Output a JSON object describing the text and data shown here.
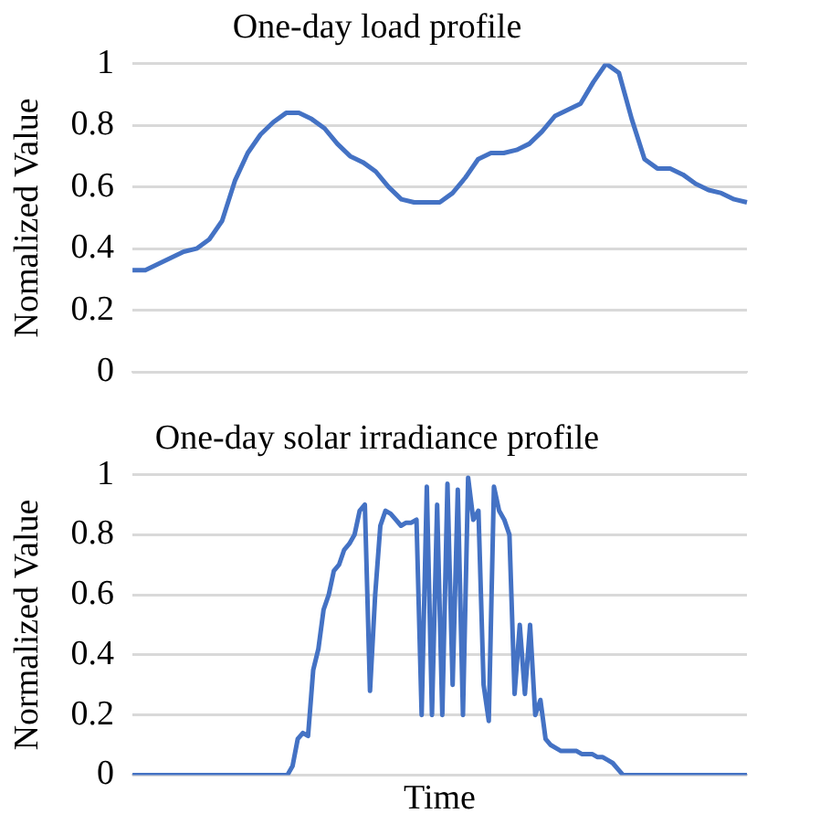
{
  "chart_data": [
    {
      "type": "line",
      "title": "One-day load profile",
      "ylabel": "Nomalized Value",
      "categories": [
        null,
        null,
        null,
        null,
        null,
        null,
        null,
        null,
        null,
        null,
        null,
        null,
        null,
        null,
        null,
        null,
        null,
        null,
        null,
        null,
        null,
        null,
        null,
        null,
        null,
        null,
        null,
        null,
        null,
        null,
        null,
        null,
        null,
        null,
        null,
        null,
        null,
        null,
        null,
        null,
        null,
        null,
        null,
        null,
        null,
        null,
        null,
        null,
        null
      ],
      "series": [
        {
          "color": "#4472c4",
          "values": [
            0.33,
            0.33,
            0.35,
            0.37,
            0.39,
            0.4,
            0.43,
            0.49,
            0.62,
            0.71,
            0.77,
            0.81,
            0.84,
            0.84,
            0.82,
            0.79,
            0.74,
            0.7,
            0.68,
            0.65,
            0.6,
            0.56,
            0.55,
            0.55,
            0.55,
            0.58,
            0.63,
            0.69,
            0.71,
            0.71,
            0.72,
            0.74,
            0.78,
            0.83,
            0.85,
            0.87,
            0.94,
            1,
            0.97,
            0.82,
            0.69,
            0.66,
            0.66,
            0.64,
            0.61,
            0.59,
            0.58,
            0.56,
            0.55
          ]
        }
      ],
      "ylim": [
        0,
        1
      ],
      "yticks": [
        0,
        0.2,
        0.4,
        0.6,
        0.8,
        1
      ],
      "grid": "y",
      "tick_labels": "y",
      "marker": "none",
      "line_style": "solid"
    },
    {
      "type": "line",
      "title": "One-day solar irradiance profile",
      "xlabel": "Time",
      "ylabel": "Normalized Value",
      "categories": [
        null,
        null,
        null,
        null,
        null,
        null,
        null,
        null,
        null,
        null,
        null,
        null,
        null,
        null,
        null,
        null,
        null,
        null,
        null,
        null,
        null,
        null,
        null,
        null,
        null,
        null,
        null,
        null,
        null,
        null,
        null,
        null,
        null,
        null,
        null,
        null,
        null,
        null,
        null,
        null,
        null,
        null,
        null,
        null,
        null,
        null,
        null,
        null,
        null,
        null,
        null,
        null,
        null,
        null,
        null,
        null,
        null,
        null,
        null,
        null,
        null,
        null,
        null,
        null,
        null,
        null,
        null,
        null,
        null,
        null,
        null,
        null,
        null,
        null,
        null,
        null,
        null,
        null,
        null,
        null,
        null,
        null,
        null,
        null,
        null,
        null,
        null,
        null,
        null,
        null,
        null,
        null,
        null,
        null,
        null,
        null,
        null,
        null,
        null,
        null,
        null,
        null,
        null,
        null,
        null,
        null,
        null,
        null,
        null,
        null,
        null,
        null,
        null,
        null,
        null,
        null,
        null,
        null,
        null,
        null
      ],
      "series": [
        {
          "color": "#4472c4",
          "values": [
            0,
            0,
            0,
            0,
            0,
            0,
            0,
            0,
            0,
            0,
            0,
            0,
            0,
            0,
            0,
            0,
            0,
            0,
            0,
            0,
            0,
            0,
            0,
            0,
            0,
            0,
            0,
            0,
            0,
            0,
            0,
            0.03,
            0.12,
            0.14,
            0.13,
            0.35,
            0.42,
            0.55,
            0.6,
            0.68,
            0.7,
            0.75,
            0.77,
            0.8,
            0.88,
            0.9,
            0.28,
            0.6,
            0.83,
            0.88,
            0.87,
            0.85,
            0.83,
            0.84,
            0.84,
            0.85,
            0.2,
            0.96,
            0.2,
            0.9,
            0.2,
            0.97,
            0.3,
            0.95,
            0.2,
            0.99,
            0.85,
            0.88,
            0.3,
            0.18,
            0.96,
            0.88,
            0.85,
            0.8,
            0.27,
            0.5,
            0.27,
            0.5,
            0.2,
            0.25,
            0.12,
            0.1,
            0.09,
            0.08,
            0.08,
            0.08,
            0.08,
            0.07,
            0.07,
            0.07,
            0.06,
            0.06,
            0.05,
            0.04,
            0.02,
            0,
            0,
            0,
            0,
            0,
            0,
            0,
            0,
            0,
            0,
            0,
            0,
            0,
            0,
            0,
            0,
            0,
            0,
            0,
            0,
            0,
            0,
            0,
            0,
            0
          ]
        }
      ],
      "ylim": [
        0,
        1
      ],
      "yticks": [
        0,
        0.2,
        0.4,
        0.6,
        0.8,
        1
      ],
      "grid": "y",
      "tick_labels": "y",
      "marker": "none",
      "line_style": "solid"
    }
  ]
}
